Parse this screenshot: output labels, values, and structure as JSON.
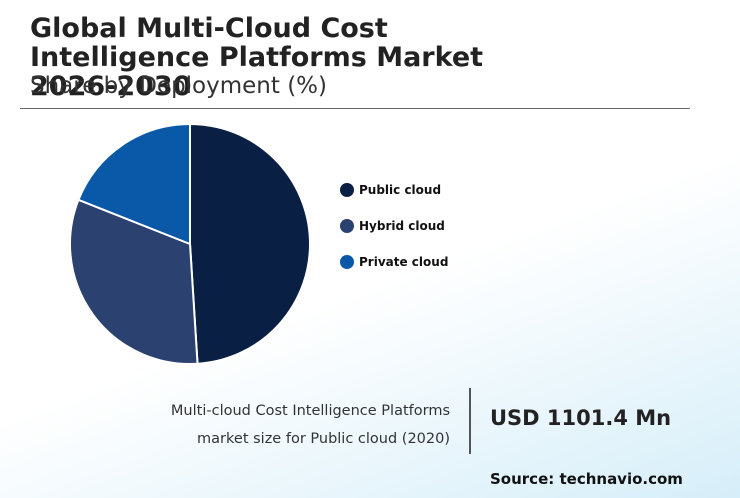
{
  "chart_data": {
    "type": "pie",
    "title": "Global Multi-Cloud Cost Intelligence Platforms Market 2026-2030",
    "subtitle": "Share by Deployment (%)",
    "categories": [
      "Public cloud",
      "Hybrid cloud",
      "Private cloud"
    ],
    "values": [
      49,
      32,
      19
    ],
    "colors": [
      "#0a1f44",
      "#2b4170",
      "#0a58a8"
    ]
  },
  "highlight": {
    "description": "Multi-cloud Cost Intelligence Platforms market size for Public cloud (2020)",
    "value": "USD 1101.4 Mn"
  },
  "source": "Source: technavio.com"
}
